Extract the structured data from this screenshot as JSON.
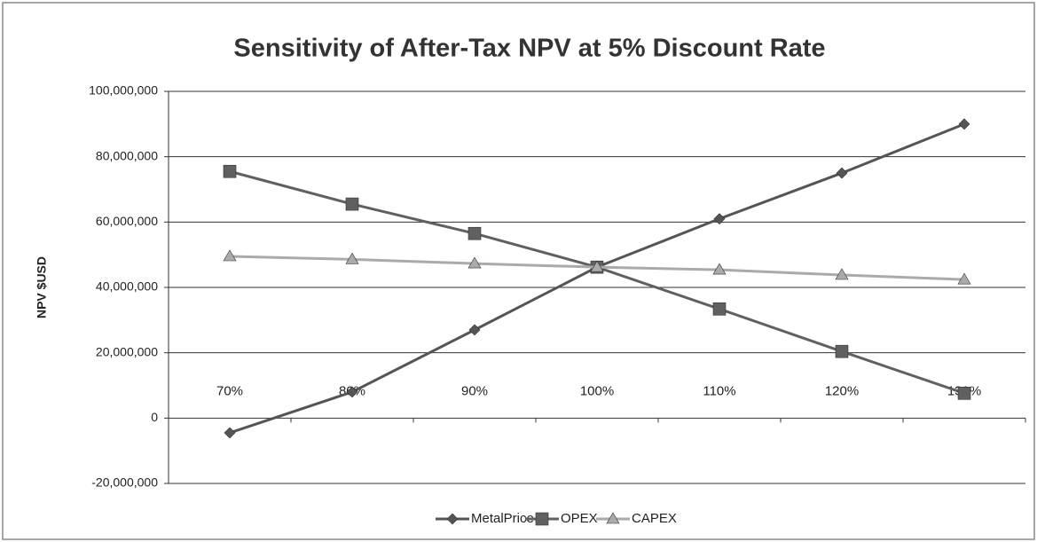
{
  "chart_data": {
    "type": "line",
    "title": "Sensitivity of After-Tax NPV at 5% Discount Rate",
    "y_label": "NPV $USD",
    "categories": [
      "70%",
      "80%",
      "90%",
      "100%",
      "110%",
      "120%",
      "130%"
    ],
    "series": [
      {
        "name": "MetalPrice",
        "color": "#555555",
        "marker": "diamond",
        "values": [
          -4500000,
          8000000,
          27000000,
          46200000,
          61000000,
          75000000,
          90000000
        ]
      },
      {
        "name": "OPEX",
        "color": "#606060",
        "marker": "square",
        "values": [
          75500000,
          65500000,
          56500000,
          46200000,
          33400000,
          20400000,
          7600000
        ]
      },
      {
        "name": "CAPEX",
        "color": "#aaaaaa",
        "marker": "triangle",
        "values": [
          49500000,
          48600000,
          47300000,
          46200000,
          45400000,
          43800000,
          42400000
        ]
      }
    ],
    "ylim": [
      -20000000,
      100000000
    ],
    "yticks": [
      {
        "value": -20000000,
        "label": "-20,000,000"
      },
      0,
      {
        "value": 20000000,
        "label": "20,000,000"
      },
      {
        "value": 40000000,
        "label": "40,000,000"
      },
      {
        "value": 60000000,
        "label": "60,000,000"
      },
      {
        "value": 80000000,
        "label": "80,000,000"
      },
      {
        "value": 100000000,
        "label": "100,000,000"
      }
    ],
    "grid": true,
    "legend": "bottom"
  }
}
